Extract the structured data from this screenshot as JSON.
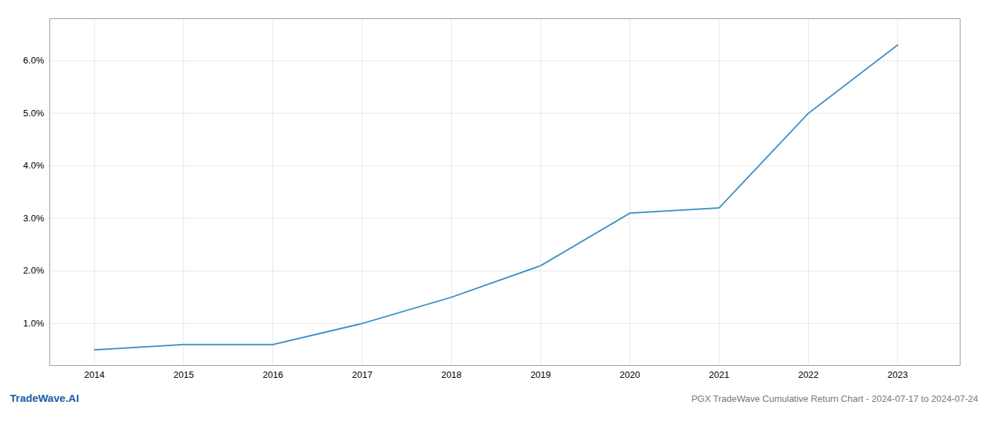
{
  "chart_data": {
    "type": "line",
    "title": "PGX TradeWave Cumulative Return Chart - 2024-07-17 to 2024-07-24",
    "annotations": [
      {
        "text": "TradeWave.AI",
        "color": "#1a5fa8"
      }
    ],
    "x": [
      2014,
      2015,
      2016,
      2017,
      2018,
      2019,
      2020,
      2021,
      2022,
      2023
    ],
    "values": [
      0.005,
      0.006,
      0.006,
      0.01,
      0.015,
      0.021,
      0.031,
      0.032,
      0.05,
      0.063
    ],
    "color": "#3d8fc4",
    "xlim": [
      2013.5,
      2023.7
    ],
    "ylim": [
      0.002,
      0.068
    ],
    "xticks": [
      2014,
      2015,
      2016,
      2017,
      2018,
      2019,
      2020,
      2021,
      2022,
      2023
    ],
    "yticks": [
      {
        "value": 0.01,
        "label": "1.0%"
      },
      {
        "value": 0.02,
        "label": "2.0%"
      },
      {
        "value": 0.03,
        "label": "3.0%"
      },
      {
        "value": 0.04,
        "label": "4.0%"
      },
      {
        "value": 0.05,
        "label": "5.0%"
      },
      {
        "value": 0.06,
        "label": "6.0%"
      }
    ],
    "grid": true
  }
}
